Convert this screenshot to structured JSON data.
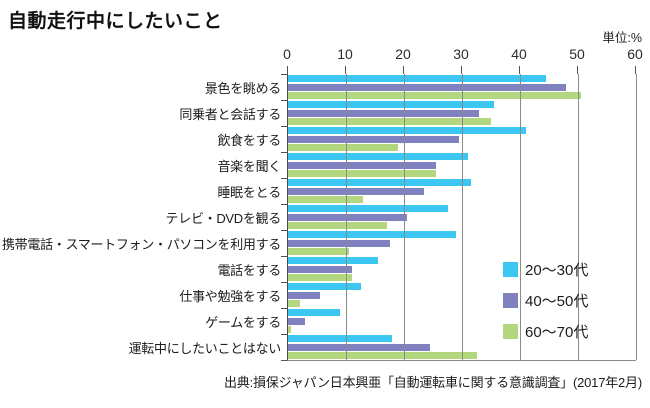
{
  "title": "自動走行中にしたいこと",
  "unit_label": "単位:%",
  "source": "出典:損保ジャパン日本興亜「自動運転車に関する意識調査」(2017年2月)",
  "chart_data": {
    "type": "bar",
    "orientation": "horizontal",
    "title": "自動走行中にしたいこと",
    "unit": "%",
    "xlim": [
      0,
      60
    ],
    "x_ticks": [
      0,
      10,
      20,
      30,
      40,
      50,
      60
    ],
    "grid": true,
    "legend_position": "inside-right",
    "categories": [
      "景色を眺める",
      "同乗者と会話する",
      "飲食をする",
      "音楽を聞く",
      "睡眠をとる",
      "テレビ・DVDを観る",
      "携帯電話・スマートフォン・パソコンを利用する",
      "電話をする",
      "仕事や勉強をする",
      "ゲームをする",
      "運転中にしたいことはない"
    ],
    "series": [
      {
        "name": "20〜30代",
        "color": "#3bc7f2",
        "values": [
          44.5,
          35.5,
          41,
          31,
          31.5,
          27.5,
          29,
          15.5,
          12.5,
          9,
          18
        ]
      },
      {
        "name": "40〜50代",
        "color": "#7f82bf",
        "values": [
          48,
          33,
          29.5,
          25.5,
          23.5,
          20.5,
          17.5,
          11,
          5.5,
          3,
          24.5
        ]
      },
      {
        "name": "60〜70代",
        "color": "#b2d77e",
        "values": [
          50.5,
          35,
          19,
          25.5,
          13,
          17,
          10.5,
          11,
          2,
          0.5,
          32.5
        ]
      }
    ]
  }
}
